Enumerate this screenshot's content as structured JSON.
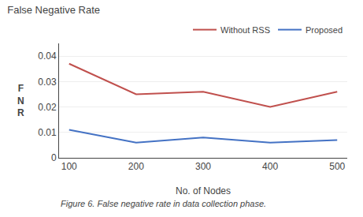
{
  "chart_data": {
    "type": "line",
    "title": "False Negative Rate",
    "xlabel": "No. of Nodes",
    "ylabel": "FNR",
    "annotations": [
      "Figure 6. False negative rate in data collection phase."
    ],
    "x": [
      100,
      200,
      300,
      400,
      500
    ],
    "series": [
      {
        "name": "Without RSS",
        "color": "#c0504d",
        "values": [
          0.037,
          0.025,
          0.026,
          0.02,
          0.026
        ]
      },
      {
        "name": "Proposed",
        "color": "#4472c4",
        "values": [
          0.011,
          0.006,
          0.008,
          0.006,
          0.007
        ]
      }
    ],
    "xlim": [
      85,
      515
    ],
    "xticks": [
      100,
      200,
      300,
      400,
      500
    ],
    "ylim": [
      0,
      0.045
    ],
    "yticks": [
      0,
      0.01,
      0.02,
      0.03,
      0.04
    ],
    "grid": "y",
    "legend": "upper right"
  }
}
